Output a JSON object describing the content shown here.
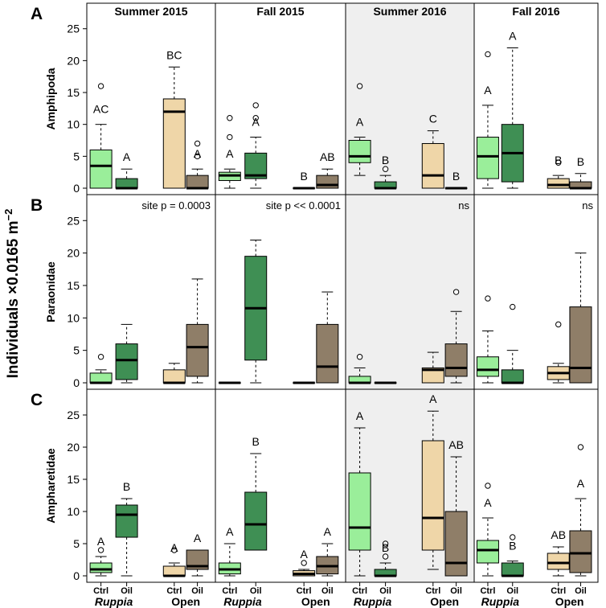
{
  "chart_data": {
    "type": "boxplot",
    "y_axis_label": "Individuals ×0.0165 m",
    "y_axis_label_exponent": "−2",
    "seasons": [
      "Summer 2015",
      "Fall 2015",
      "Summer 2016",
      "Fall 2016"
    ],
    "shaded_season": "Summer 2016",
    "treatments": [
      "Ctrl",
      "Oil",
      "Ctrl",
      "Oil"
    ],
    "sites": [
      "Ruppia",
      "Open"
    ],
    "colors": {
      "Ruppia-Ctrl": "#9aee9a",
      "Ruppia-Oil": "#3f8f54",
      "Open-Ctrl": "#efd6a8",
      "Open-Oil": "#8f7e68",
      "shade": "#efefef"
    },
    "ylim": [
      0,
      29
    ],
    "yticks": [
      0,
      5,
      10,
      15,
      20,
      25
    ],
    "panels": [
      {
        "letter": "A",
        "taxon": "Amphipoda",
        "stats": [
          "",
          "",
          "",
          ""
        ],
        "boxes": [
          [
            {
              "wlo": 0,
              "q1": 0,
              "med": 3.5,
              "q3": 6,
              "whi": 10,
              "out": [
                16
              ],
              "label": "AC"
            },
            {
              "wlo": 0,
              "q1": 0,
              "med": 0,
              "q3": 1.5,
              "whi": 3,
              "out": [],
              "label": "A"
            },
            {
              "wlo": 0,
              "q1": 0,
              "med": 12,
              "q3": 14,
              "whi": 19,
              "out": [],
              "label": "BC"
            },
            {
              "wlo": 0,
              "q1": 0,
              "med": 0,
              "q3": 2,
              "whi": 3,
              "out": [
                5,
                7
              ],
              "label": "A"
            }
          ],
          [
            {
              "wlo": 0,
              "q1": 1.2,
              "med": 2,
              "q3": 2.5,
              "whi": 3,
              "out": [
                8,
                11
              ],
              "label": "A"
            },
            {
              "wlo": 0,
              "q1": 1.5,
              "med": 2,
              "q3": 5.5,
              "whi": 8,
              "out": [
                11,
                13
              ],
              "label": "A"
            },
            {
              "wlo": 0,
              "q1": 0,
              "med": 0,
              "q3": 0,
              "whi": 0,
              "out": [],
              "label": "B"
            },
            {
              "wlo": 0,
              "q1": 0,
              "med": 0.5,
              "q3": 2,
              "whi": 3,
              "out": [],
              "label": "AB"
            }
          ],
          [
            {
              "wlo": 2,
              "q1": 4,
              "med": 5,
              "q3": 7.5,
              "whi": 8,
              "out": [
                16
              ],
              "label": "A"
            },
            {
              "wlo": 0,
              "q1": 0,
              "med": 0,
              "q3": 1,
              "whi": 2,
              "out": [
                3
              ],
              "label": "B"
            },
            {
              "wlo": 0,
              "q1": 0,
              "med": 2,
              "q3": 7,
              "whi": 9,
              "out": [],
              "label": "C"
            },
            {
              "wlo": 0,
              "q1": 0,
              "med": 0,
              "q3": 0,
              "whi": 0,
              "out": [],
              "label": "B"
            }
          ],
          [
            {
              "wlo": 0,
              "q1": 1.5,
              "med": 5,
              "q3": 8,
              "whi": 13,
              "out": [
                21
              ],
              "label": "A"
            },
            {
              "wlo": 0,
              "q1": 1,
              "med": 5.5,
              "q3": 10,
              "whi": 22,
              "out": [],
              "label": "A"
            },
            {
              "wlo": 0,
              "q1": 0,
              "med": 0.5,
              "q3": 1.5,
              "whi": 2,
              "out": [
                4
              ],
              "label": "B"
            },
            {
              "wlo": 0,
              "q1": 0,
              "med": 0,
              "q3": 1,
              "whi": 2.3,
              "out": [],
              "label": "B"
            }
          ]
        ]
      },
      {
        "letter": "B",
        "taxon": "Paraonidae",
        "stats": [
          "site p = 0.0003",
          "site p << 0.0001",
          "ns",
          "ns"
        ],
        "boxes": [
          [
            {
              "wlo": 0,
              "q1": 0,
              "med": 0,
              "q3": 1.5,
              "whi": 2,
              "out": [
                4
              ],
              "label": ""
            },
            {
              "wlo": 0,
              "q1": 0.5,
              "med": 3.5,
              "q3": 6,
              "whi": 9,
              "out": [],
              "label": ""
            },
            {
              "wlo": 0,
              "q1": 0,
              "med": 0,
              "q3": 2,
              "whi": 3,
              "out": [],
              "label": ""
            },
            {
              "wlo": 0,
              "q1": 1,
              "med": 5.5,
              "q3": 9,
              "whi": 16,
              "out": [],
              "label": ""
            }
          ],
          [
            {
              "wlo": 0,
              "q1": 0,
              "med": 0,
              "q3": 0,
              "whi": 0,
              "out": [],
              "label": ""
            },
            {
              "wlo": 0,
              "q1": 3.5,
              "med": 11.5,
              "q3": 19.5,
              "whi": 22,
              "out": [],
              "label": ""
            },
            {
              "wlo": 0,
              "q1": 0,
              "med": 0,
              "q3": 0,
              "whi": 0,
              "out": [],
              "label": ""
            },
            {
              "wlo": 0,
              "q1": 0,
              "med": 2.5,
              "q3": 9,
              "whi": 14,
              "out": [],
              "label": ""
            }
          ],
          [
            {
              "wlo": 0,
              "q1": 0,
              "med": 0,
              "q3": 1,
              "whi": 2.3,
              "out": [
                4
              ],
              "label": ""
            },
            {
              "wlo": 0,
              "q1": 0,
              "med": 0,
              "q3": 0,
              "whi": 0,
              "out": [],
              "label": ""
            },
            {
              "wlo": 0,
              "q1": 0,
              "med": 2,
              "q3": 2.3,
              "whi": 4.7,
              "out": [],
              "label": ""
            },
            {
              "wlo": 0,
              "q1": 1,
              "med": 2.3,
              "q3": 6,
              "whi": 11,
              "out": [
                14
              ],
              "label": ""
            }
          ],
          [
            {
              "wlo": 0,
              "q1": 1,
              "med": 2,
              "q3": 4,
              "whi": 8,
              "out": [
                13
              ],
              "label": ""
            },
            {
              "wlo": 0,
              "q1": 0,
              "med": 0,
              "q3": 2,
              "whi": 5,
              "out": [
                11.7
              ],
              "label": ""
            },
            {
              "wlo": 0,
              "q1": 0.5,
              "med": 1.5,
              "q3": 2.5,
              "whi": 3,
              "out": [
                9
              ],
              "label": ""
            },
            {
              "wlo": 0,
              "q1": 0,
              "med": 2.3,
              "q3": 11.7,
              "whi": 20,
              "out": [],
              "label": ""
            }
          ]
        ]
      },
      {
        "letter": "C",
        "taxon": "Ampharetidae",
        "stats": [
          "",
          "",
          "",
          ""
        ],
        "boxes": [
          [
            {
              "wlo": 0,
              "q1": 0.5,
              "med": 1,
              "q3": 2,
              "whi": 3,
              "out": [
                4
              ],
              "label": "A"
            },
            {
              "wlo": 0,
              "q1": 6,
              "med": 9.5,
              "q3": 11,
              "whi": 12,
              "out": [],
              "label": "B"
            },
            {
              "wlo": 0,
              "q1": 0,
              "med": 0,
              "q3": 1.5,
              "whi": 2,
              "out": [
                4
              ],
              "label": "A"
            },
            {
              "wlo": 0,
              "q1": 1,
              "med": 1.5,
              "q3": 4,
              "whi": 4,
              "out": [],
              "label": "A"
            }
          ],
          [
            {
              "wlo": 0,
              "q1": 0.3,
              "med": 1,
              "q3": 2,
              "whi": 5,
              "out": [],
              "label": "A"
            },
            {
              "wlo": 4,
              "q1": 4,
              "med": 8,
              "q3": 13,
              "whi": 19,
              "out": [],
              "label": "B"
            },
            {
              "wlo": 0,
              "q1": 0,
              "med": 0.3,
              "q3": 0.8,
              "whi": 1,
              "out": [
                2
              ],
              "label": "A"
            },
            {
              "wlo": 0,
              "q1": 0.3,
              "med": 1.5,
              "q3": 3,
              "whi": 5,
              "out": [],
              "label": "A"
            }
          ],
          [
            {
              "wlo": 0,
              "q1": 4,
              "med": 7.5,
              "q3": 16,
              "whi": 23,
              "out": [],
              "label": "A"
            },
            {
              "wlo": 0,
              "q1": 0,
              "med": 0,
              "q3": 1,
              "whi": 2,
              "out": [
                3,
                5
              ],
              "label": "B"
            },
            {
              "wlo": 1,
              "q1": 4,
              "med": 9,
              "q3": 21,
              "whi": 25.6,
              "out": [],
              "label": "A"
            },
            {
              "wlo": 0,
              "q1": 0,
              "med": 2,
              "q3": 10,
              "whi": 18.5,
              "out": [],
              "label": "AB"
            }
          ],
          [
            {
              "wlo": 0,
              "q1": 2,
              "med": 4,
              "q3": 5.5,
              "whi": 9,
              "out": [
                14
              ],
              "label": "A"
            },
            {
              "wlo": 0,
              "q1": 0,
              "med": 0,
              "q3": 2,
              "whi": 2.3,
              "out": [
                6
              ],
              "label": "B"
            },
            {
              "wlo": 0,
              "q1": 1,
              "med": 2,
              "q3": 3.5,
              "whi": 4.5,
              "out": [],
              "label": "AB"
            },
            {
              "wlo": 0,
              "q1": 0.5,
              "med": 3.5,
              "q3": 7,
              "whi": 12,
              "out": [
                20
              ],
              "label": "A"
            }
          ]
        ]
      }
    ]
  }
}
